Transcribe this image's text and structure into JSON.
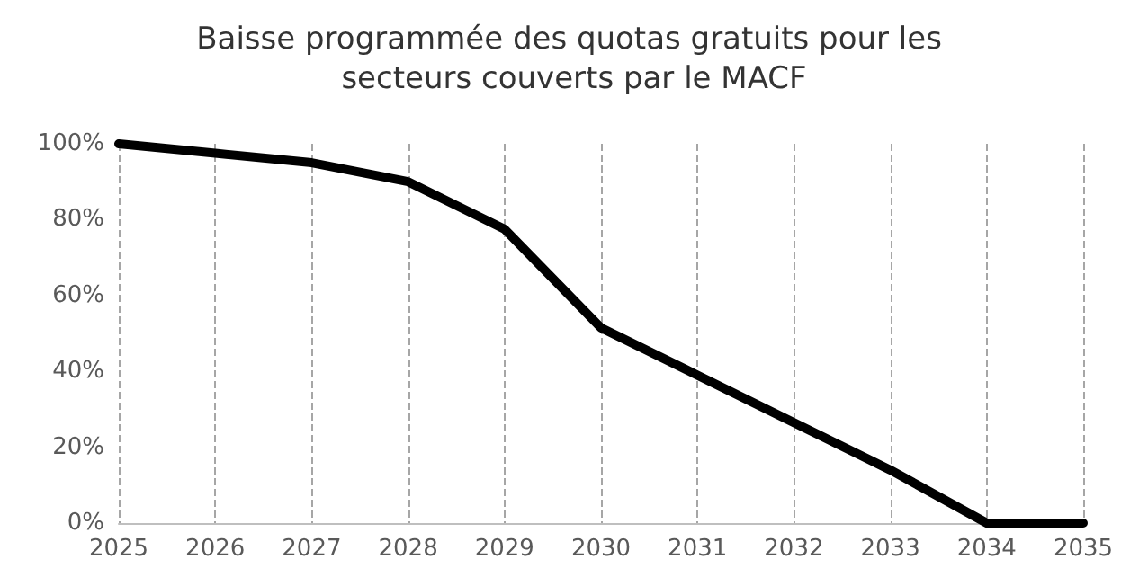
{
  "chart_data": {
    "type": "line",
    "title": "Baisse programmée des quotas gratuits pour les secteurs couverts par le MACF",
    "categories": [
      "2025",
      "2026",
      "2027",
      "2028",
      "2029",
      "2030",
      "2031",
      "2032",
      "2033",
      "2034",
      "2035"
    ],
    "series": [
      {
        "color": "#000000",
        "values": [
          100,
          97.5,
          95,
          90,
          77.5,
          51.5,
          39,
          26.5,
          14,
          0,
          0
        ]
      }
    ],
    "ylim": [
      0,
      100
    ],
    "yticks": [
      {
        "value": 0,
        "label": "0%"
      },
      {
        "value": 20,
        "label": "20%"
      },
      {
        "value": 40,
        "label": "40%"
      },
      {
        "value": 60,
        "label": "60%"
      },
      {
        "value": 80,
        "label": "80%"
      },
      {
        "value": 100,
        "label": "100%"
      }
    ],
    "grid": "x",
    "marker": "none",
    "line_style": "solid"
  }
}
